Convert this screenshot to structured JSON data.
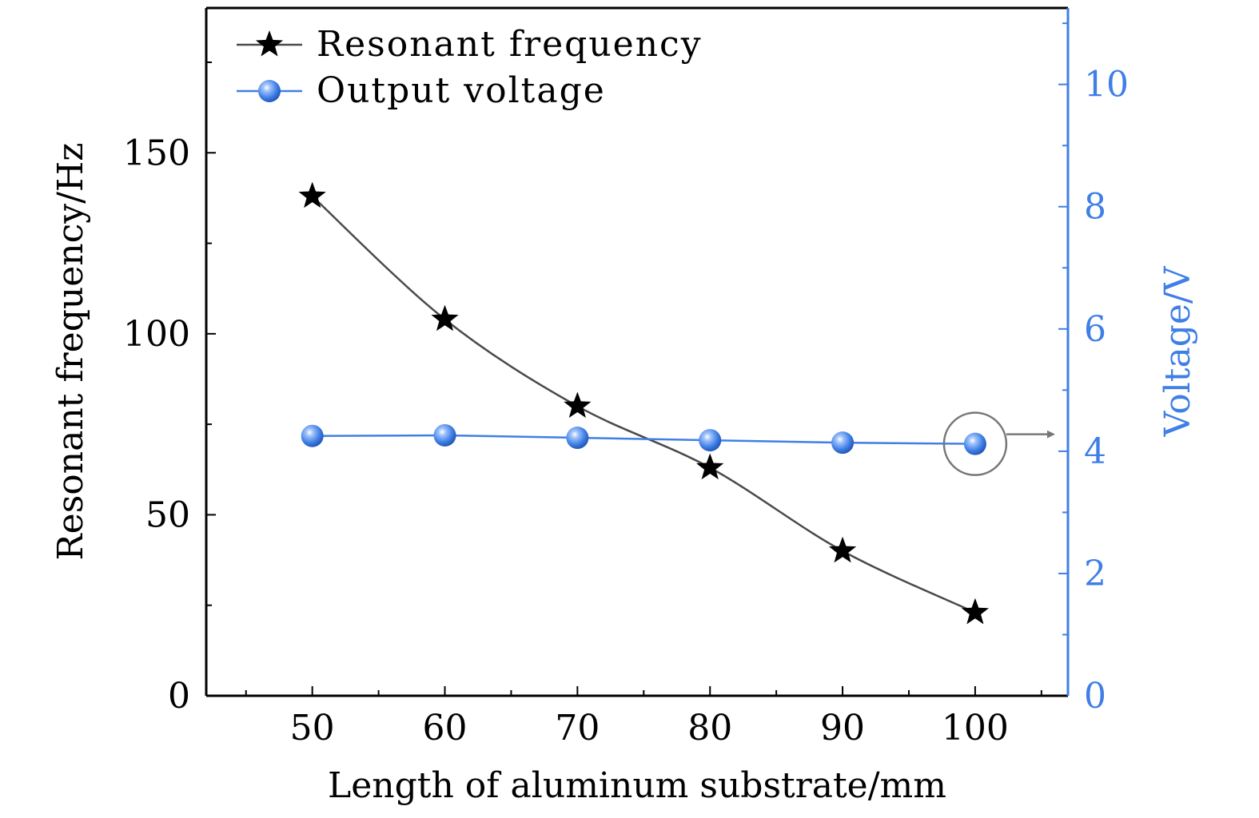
{
  "chart_data": {
    "type": "line",
    "x_axis": {
      "label": "Length of aluminum substrate/mm",
      "range": [
        42,
        107
      ],
      "major_ticks": [
        50,
        60,
        70,
        80,
        90,
        100
      ],
      "tick_labels": [
        "50",
        "60",
        "70",
        "80",
        "90",
        "100"
      ],
      "minor_ticks": [
        45,
        55,
        65,
        75,
        85,
        95,
        105
      ]
    },
    "y_axis_left": {
      "label": "Resonant frequency/Hz",
      "range": [
        0,
        190
      ],
      "major_ticks": [
        0,
        50,
        100,
        150
      ],
      "tick_labels": [
        "0",
        "50",
        "100",
        "150"
      ],
      "minor_ticks": [
        25,
        75,
        125,
        175
      ]
    },
    "y_axis_right": {
      "label": "Voltage/V",
      "range": [
        0,
        11.25
      ],
      "major_ticks": [
        0,
        2,
        4,
        6,
        8,
        10
      ],
      "tick_labels": [
        "0",
        "2",
        "4",
        "6",
        "8",
        "10"
      ],
      "minor_ticks": [
        1,
        3,
        5,
        7,
        9,
        11
      ]
    },
    "series": [
      {
        "name": "Resonant frequency",
        "axis": "left",
        "marker": "star",
        "color": "#000000",
        "line_color": "#4a4a4a",
        "x": [
          50,
          60,
          70,
          80,
          90,
          100
        ],
        "values": [
          138,
          104,
          80,
          63,
          40,
          23
        ]
      },
      {
        "name": "Output voltage",
        "axis": "right",
        "marker": "sphere",
        "color": "#3f7fe6",
        "line_color": "#3f7fe6",
        "x": [
          50,
          60,
          70,
          80,
          90,
          100
        ],
        "values": [
          4.25,
          4.26,
          4.22,
          4.18,
          4.14,
          4.12
        ]
      }
    ],
    "annotation": {
      "type": "circle-arrow",
      "x": 100,
      "axis": "right",
      "points_to": "right",
      "color": "#777777"
    },
    "legend": {
      "placement": "top-left"
    },
    "right_axis_color": "#3f7fe6",
    "grid": false
  }
}
